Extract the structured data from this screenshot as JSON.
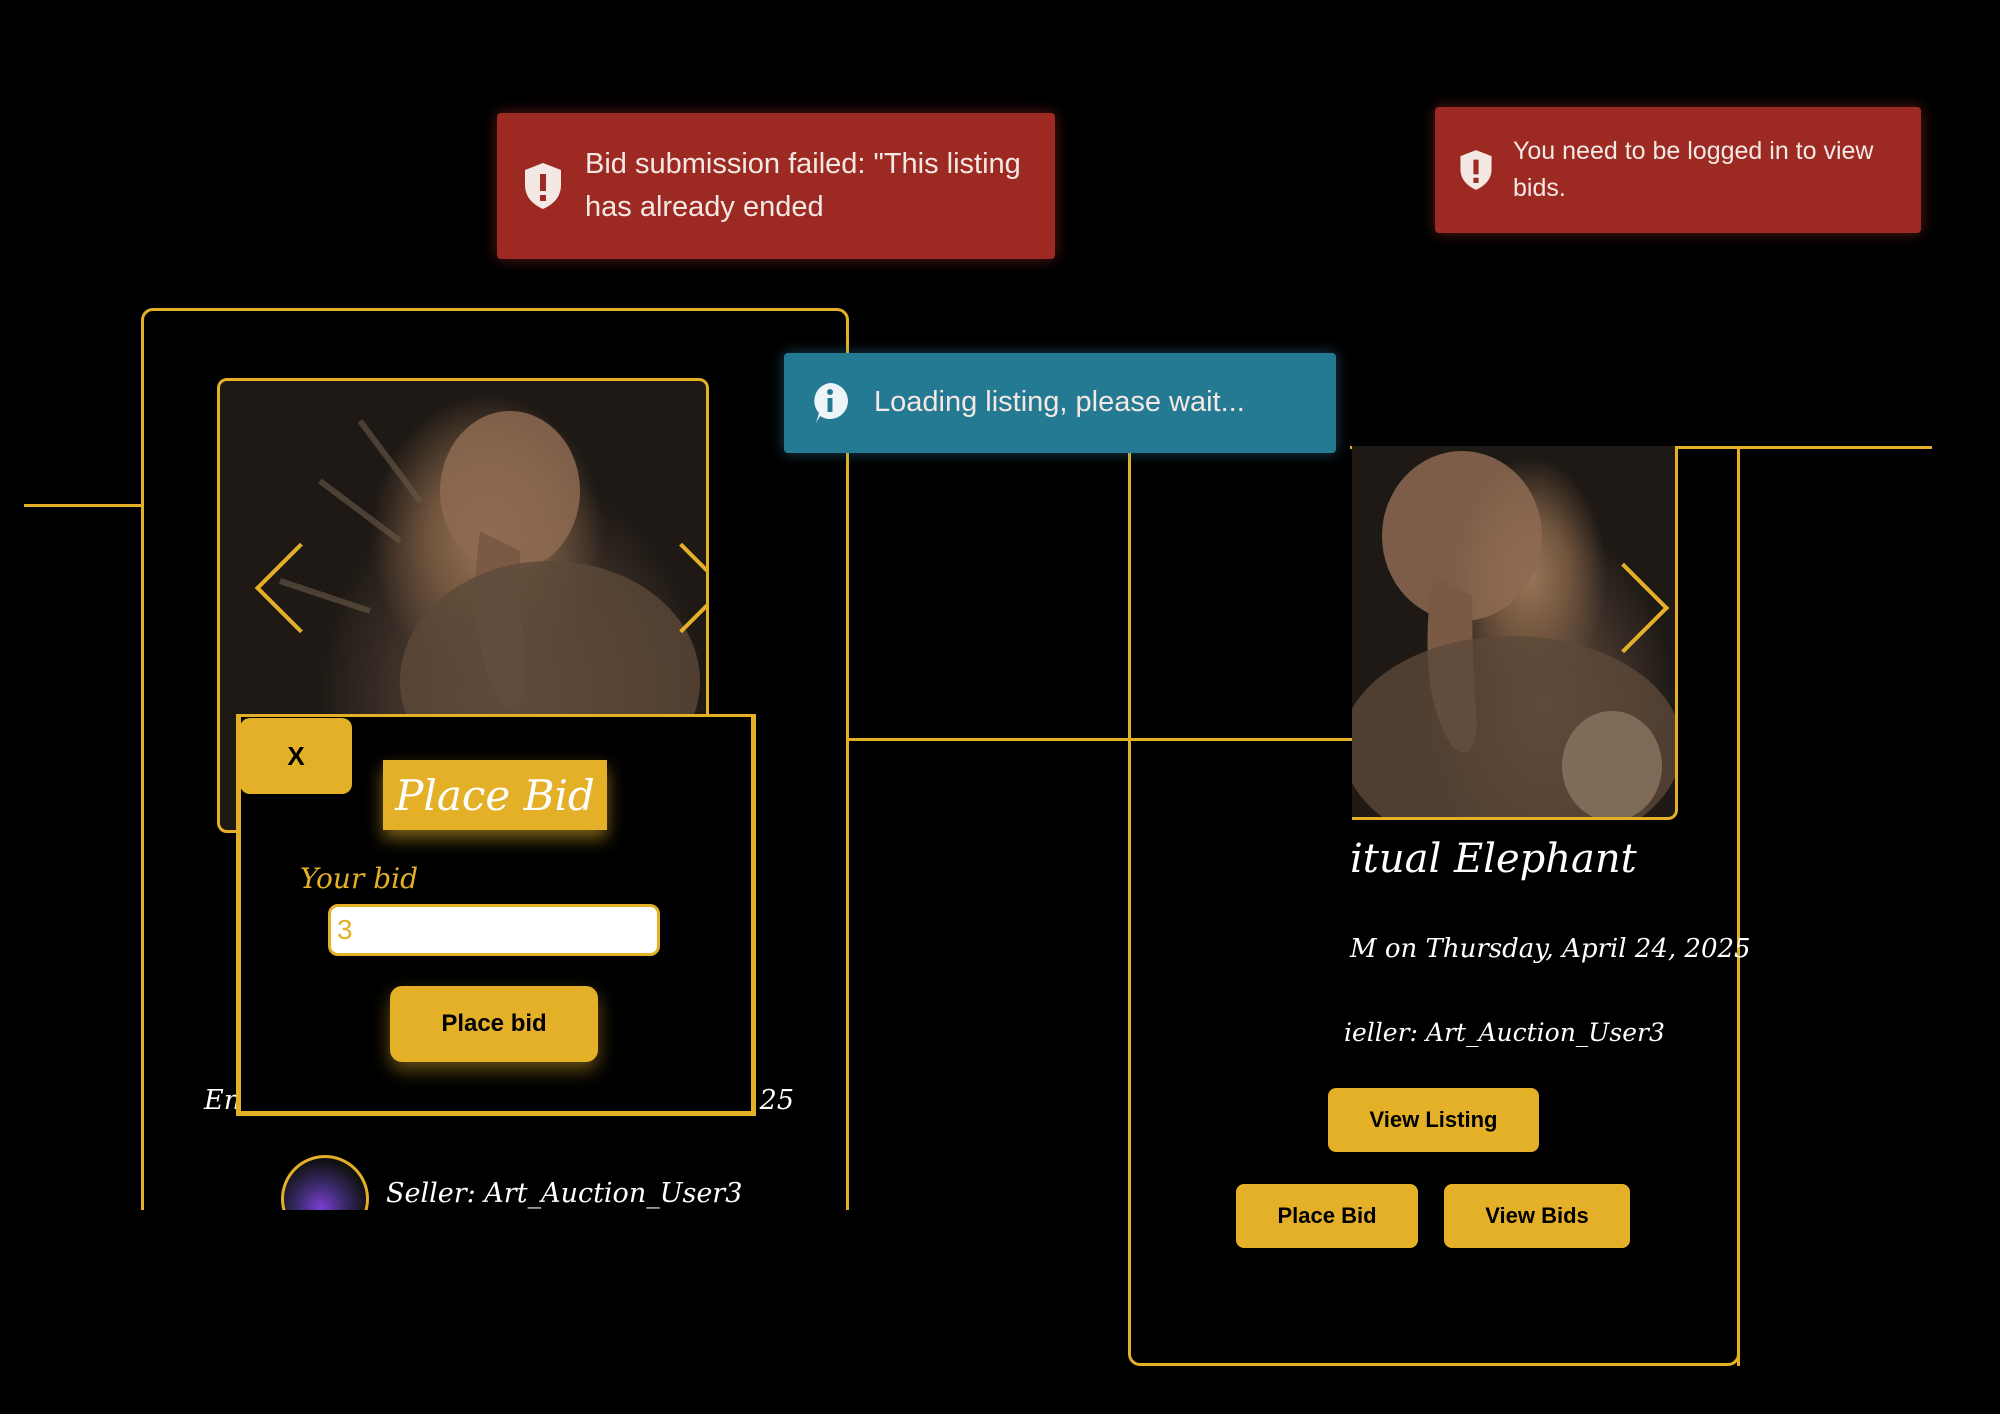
{
  "toasts": {
    "bid_failed": {
      "icon": "shield-alert-icon",
      "text": "Bid submission failed: \"This listing has already ended"
    },
    "login_required": {
      "icon": "shield-alert-icon",
      "text": "You need to be logged in to view bids."
    },
    "loading": {
      "icon": "info-icon",
      "text": "Loading listing, please wait..."
    }
  },
  "left_card": {
    "end_prefix": "En",
    "end_suffix": "25",
    "seller": "Seller: Art_Auction_User3"
  },
  "bid_modal": {
    "close_label": "X",
    "title": "Place Bid",
    "field_label": "Your bid",
    "field_value": "3",
    "submit_label": "Place bid"
  },
  "right_card": {
    "title_partial": "itual Elephant",
    "end_partial": "M on Thursday, April 24, 2025",
    "seller_partial": "ieller: Art_Auction_User3",
    "view_listing_label": "View Listing",
    "place_bid_label": "Place Bid",
    "view_bids_label": "View Bids"
  },
  "colors": {
    "accent": "#e3b027",
    "error": "#9c2a23",
    "info": "#247a93",
    "background": "#000000"
  }
}
